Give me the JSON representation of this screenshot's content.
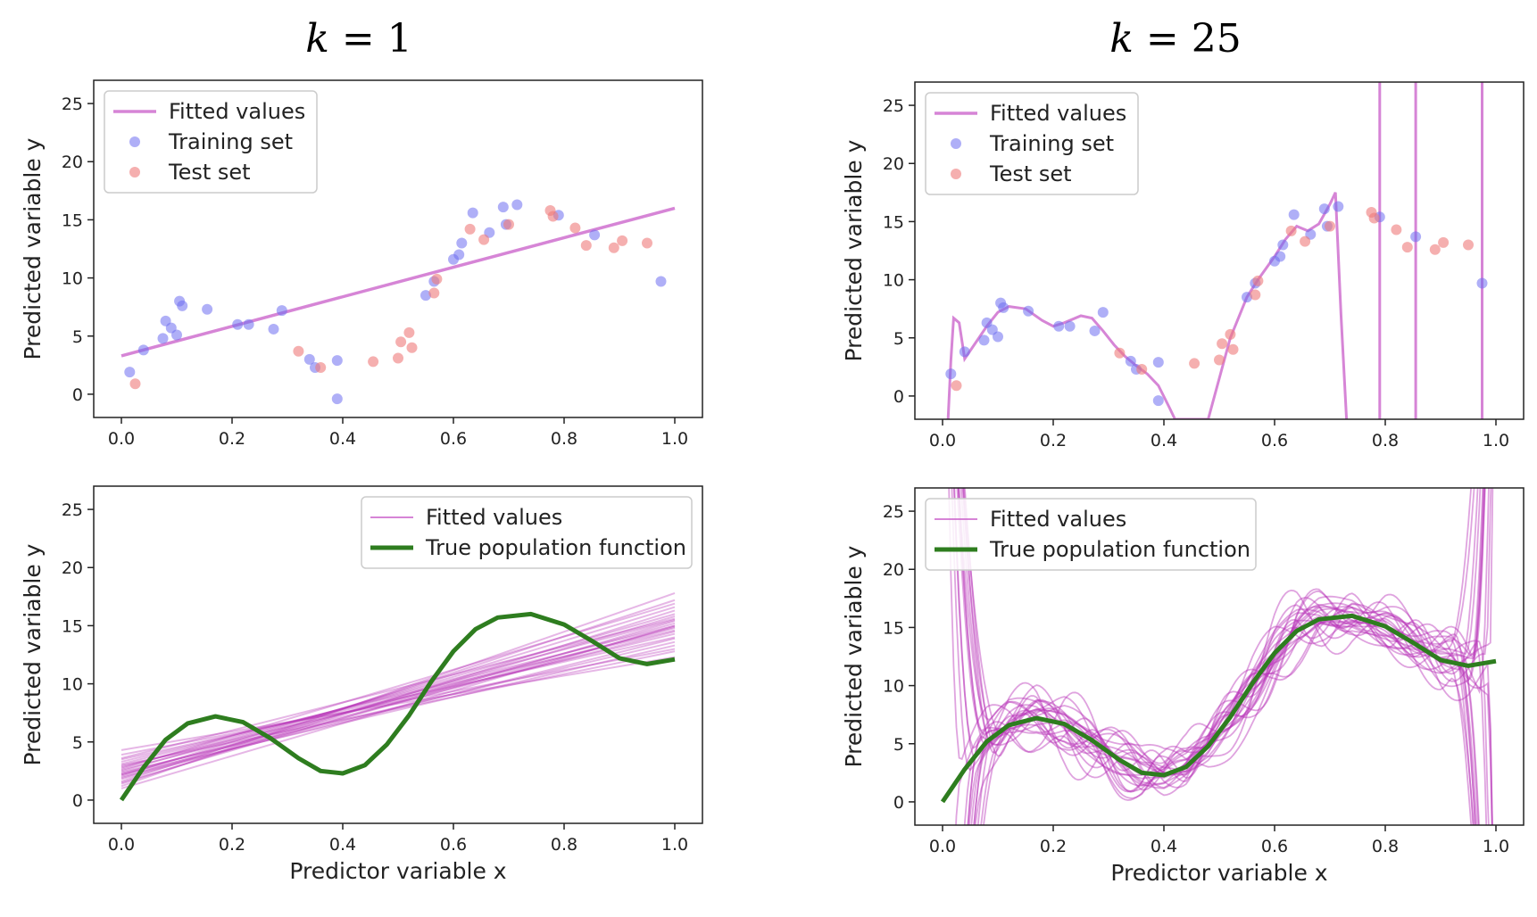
{
  "columns": [
    {
      "k_symbol": "k",
      "k_value": "= 1"
    },
    {
      "k_symbol": "k",
      "k_value": "= 25"
    }
  ],
  "chart_data": [
    {
      "id": "top-left",
      "type": "scatter",
      "degree": 1,
      "xlim": [
        -0.05,
        1.05
      ],
      "ylim": [
        -2,
        27
      ],
      "xticks": [
        0.0,
        0.2,
        0.4,
        0.6,
        0.8,
        1.0
      ],
      "xtick_labels": [
        "0.0",
        "0.2",
        "0.4",
        "0.6",
        "0.8",
        "1.0"
      ],
      "yticks": [
        0,
        5,
        10,
        15,
        20,
        25
      ],
      "ytick_labels": [
        "0",
        "5",
        "10",
        "15",
        "20",
        "25"
      ],
      "xlabel": "",
      "ylabel": "Predicted variable y",
      "legend": {
        "position": "upper left",
        "entries": [
          "Fitted values",
          "Training set",
          "Test set"
        ]
      },
      "fitted_line": {
        "x": [
          0.0,
          1.0
        ],
        "y": [
          3.3,
          16.0
        ]
      },
      "training_set": {
        "x": [
          0.015,
          0.04,
          0.075,
          0.08,
          0.09,
          0.1,
          0.105,
          0.11,
          0.155,
          0.21,
          0.23,
          0.275,
          0.29,
          0.34,
          0.35,
          0.39,
          0.39,
          0.55,
          0.565,
          0.6,
          0.61,
          0.615,
          0.635,
          0.665,
          0.69,
          0.695,
          0.715,
          0.79,
          0.855,
          0.975
        ],
        "y": [
          1.9,
          3.8,
          4.8,
          6.3,
          5.7,
          5.1,
          8.0,
          7.6,
          7.3,
          6.0,
          6.0,
          5.6,
          7.2,
          3.0,
          2.3,
          2.9,
          -0.4,
          8.5,
          9.7,
          11.6,
          12.0,
          13.0,
          15.6,
          13.9,
          16.1,
          14.6,
          16.3,
          15.4,
          13.7,
          9.7
        ]
      },
      "test_set": {
        "x": [
          0.025,
          0.32,
          0.36,
          0.455,
          0.5,
          0.505,
          0.52,
          0.525,
          0.565,
          0.57,
          0.63,
          0.655,
          0.7,
          0.775,
          0.78,
          0.82,
          0.84,
          0.89,
          0.905,
          0.95
        ],
        "y": [
          0.9,
          3.7,
          2.3,
          2.8,
          3.1,
          4.5,
          5.3,
          4.0,
          8.7,
          9.9,
          14.2,
          13.3,
          14.6,
          15.8,
          15.3,
          14.3,
          12.8,
          12.6,
          13.2,
          13.0
        ]
      }
    },
    {
      "id": "top-right",
      "type": "scatter",
      "degree": 25,
      "xlim": [
        -0.05,
        1.05
      ],
      "ylim": [
        -2,
        27
      ],
      "xticks": [
        0.0,
        0.2,
        0.4,
        0.6,
        0.8,
        1.0
      ],
      "xtick_labels": [
        "0.0",
        "0.2",
        "0.4",
        "0.6",
        "0.8",
        "1.0"
      ],
      "yticks": [
        0,
        5,
        10,
        15,
        20,
        25
      ],
      "ytick_labels": [
        "0",
        "5",
        "10",
        "15",
        "20",
        "25"
      ],
      "xlabel": "",
      "ylabel": "Predicted variable y",
      "legend": {
        "position": "upper left",
        "entries": [
          "Fitted values",
          "Training set",
          "Test set"
        ]
      },
      "fitted_curve": {
        "x": [
          0.01,
          0.015,
          0.02,
          0.03,
          0.04,
          0.06,
          0.08,
          0.1,
          0.12,
          0.15,
          0.18,
          0.2,
          0.22,
          0.25,
          0.27,
          0.29,
          0.31,
          0.33,
          0.35,
          0.37,
          0.39,
          0.41,
          0.42,
          0.48,
          0.5,
          0.52,
          0.55,
          0.57,
          0.6,
          0.62,
          0.64,
          0.66,
          0.68,
          0.7,
          0.71,
          0.72,
          0.73
        ],
        "y": [
          -2,
          3,
          6.7,
          6.3,
          3.2,
          4.6,
          6.0,
          7.2,
          7.7,
          7.5,
          6.5,
          6.0,
          6.3,
          6.9,
          6.7,
          5.6,
          4.4,
          3.4,
          2.6,
          1.9,
          0.9,
          -1.0,
          -2,
          -2,
          1.5,
          5.0,
          8.5,
          10.0,
          12.0,
          13.5,
          14.6,
          14.2,
          14.8,
          16.5,
          17.5,
          7.0,
          -2
        ],
        "spikes_x": [
          0.79,
          0.855,
          0.975
        ]
      },
      "training_set": {
        "x": [
          0.015,
          0.04,
          0.075,
          0.08,
          0.09,
          0.1,
          0.105,
          0.11,
          0.155,
          0.21,
          0.23,
          0.275,
          0.29,
          0.34,
          0.35,
          0.39,
          0.39,
          0.55,
          0.565,
          0.6,
          0.61,
          0.615,
          0.635,
          0.665,
          0.69,
          0.695,
          0.715,
          0.79,
          0.855,
          0.975
        ],
        "y": [
          1.9,
          3.8,
          4.8,
          6.3,
          5.7,
          5.1,
          8.0,
          7.6,
          7.3,
          6.0,
          6.0,
          5.6,
          7.2,
          3.0,
          2.3,
          2.9,
          -0.4,
          8.5,
          9.7,
          11.6,
          12.0,
          13.0,
          15.6,
          13.9,
          16.1,
          14.6,
          16.3,
          15.4,
          13.7,
          9.7
        ]
      },
      "test_set": {
        "x": [
          0.025,
          0.32,
          0.36,
          0.455,
          0.5,
          0.505,
          0.52,
          0.525,
          0.565,
          0.57,
          0.63,
          0.655,
          0.7,
          0.775,
          0.78,
          0.82,
          0.84,
          0.89,
          0.905,
          0.95
        ],
        "y": [
          0.9,
          3.7,
          2.3,
          2.8,
          3.1,
          4.5,
          5.3,
          4.0,
          8.7,
          9.9,
          14.2,
          13.3,
          14.6,
          15.8,
          15.3,
          14.3,
          12.8,
          12.6,
          13.2,
          13.0
        ]
      }
    },
    {
      "id": "bottom-left",
      "type": "line",
      "degree": 1,
      "xlim": [
        -0.05,
        1.05
      ],
      "ylim": [
        -2,
        27
      ],
      "xticks": [
        0.0,
        0.2,
        0.4,
        0.6,
        0.8,
        1.0
      ],
      "xtick_labels": [
        "0.0",
        "0.2",
        "0.4",
        "0.6",
        "0.8",
        "1.0"
      ],
      "yticks": [
        0,
        5,
        10,
        15,
        20,
        25
      ],
      "ytick_labels": [
        "0",
        "5",
        "10",
        "15",
        "20",
        "25"
      ],
      "xlabel": "Predictor variable x",
      "ylabel": "Predicted variable y",
      "legend": {
        "position": "upper right",
        "entries": [
          "Fitted values",
          "True population function"
        ]
      },
      "fitted_lines": [
        {
          "y0": 4.3,
          "y1": 12.3
        },
        {
          "y0": 3.9,
          "y1": 13.0
        },
        {
          "y0": 3.5,
          "y1": 14.0
        },
        {
          "y0": 3.3,
          "y1": 14.6
        },
        {
          "y0": 3.1,
          "y1": 15.0
        },
        {
          "y0": 2.9,
          "y1": 14.3
        },
        {
          "y0": 2.8,
          "y1": 15.5
        },
        {
          "y0": 2.6,
          "y1": 14.8
        },
        {
          "y0": 2.5,
          "y1": 16.0
        },
        {
          "y0": 2.4,
          "y1": 13.6
        },
        {
          "y0": 2.3,
          "y1": 14.5
        },
        {
          "y0": 2.2,
          "y1": 15.2
        },
        {
          "y0": 2.1,
          "y1": 16.6
        },
        {
          "y0": 2.0,
          "y1": 13.9
        },
        {
          "y0": 1.9,
          "y1": 15.8
        },
        {
          "y0": 1.8,
          "y1": 14.9
        },
        {
          "y0": 1.6,
          "y1": 17.2
        },
        {
          "y0": 1.5,
          "y1": 15.4
        },
        {
          "y0": 1.4,
          "y1": 16.3
        },
        {
          "y0": 1.2,
          "y1": 17.8
        },
        {
          "y0": 1.0,
          "y1": 15.0
        },
        {
          "y0": 2.7,
          "y1": 16.9
        },
        {
          "y0": 3.0,
          "y1": 12.8
        },
        {
          "y0": 2.2,
          "y1": 13.3
        },
        {
          "y0": 3.6,
          "y1": 15.6
        }
      ],
      "true_function": {
        "x": [
          0.0,
          0.04,
          0.08,
          0.12,
          0.17,
          0.22,
          0.27,
          0.32,
          0.36,
          0.4,
          0.44,
          0.48,
          0.52,
          0.56,
          0.6,
          0.64,
          0.68,
          0.74,
          0.8,
          0.85,
          0.9,
          0.95,
          1.0
        ],
        "y": [
          0.0,
          2.8,
          5.2,
          6.6,
          7.2,
          6.7,
          5.3,
          3.6,
          2.5,
          2.3,
          3.0,
          4.8,
          7.3,
          10.2,
          12.8,
          14.7,
          15.7,
          16.0,
          15.1,
          13.7,
          12.2,
          11.7,
          12.1
        ]
      }
    },
    {
      "id": "bottom-right",
      "type": "line",
      "degree": 25,
      "xlim": [
        -0.05,
        1.05
      ],
      "ylim": [
        -2,
        27
      ],
      "xticks": [
        0.0,
        0.2,
        0.4,
        0.6,
        0.8,
        1.0
      ],
      "xtick_labels": [
        "0.0",
        "0.2",
        "0.4",
        "0.6",
        "0.8",
        "1.0"
      ],
      "yticks": [
        0,
        5,
        10,
        15,
        20,
        25
      ],
      "ytick_labels": [
        "0",
        "5",
        "10",
        "15",
        "20",
        "25"
      ],
      "xlabel": "Predictor variable x",
      "ylabel": "Predicted variable y",
      "legend": {
        "position": "upper left",
        "entries": [
          "Fitted values",
          "True population function"
        ]
      },
      "fitted_curve_count": 25,
      "true_function": {
        "x": [
          0.0,
          0.04,
          0.08,
          0.12,
          0.17,
          0.22,
          0.27,
          0.32,
          0.36,
          0.4,
          0.44,
          0.48,
          0.52,
          0.56,
          0.6,
          0.64,
          0.68,
          0.74,
          0.8,
          0.85,
          0.9,
          0.95,
          1.0
        ],
        "y": [
          0.0,
          2.8,
          5.2,
          6.6,
          7.2,
          6.7,
          5.3,
          3.6,
          2.5,
          2.3,
          3.0,
          4.8,
          7.3,
          10.2,
          12.8,
          14.7,
          15.7,
          16.0,
          15.1,
          13.7,
          12.2,
          11.7,
          12.1
        ]
      }
    }
  ],
  "colors": {
    "fitted": "#cc66cc",
    "fitted_dense": "#b833b8",
    "training": "#6e6ef0",
    "test": "#ef7a7a",
    "true_function": "#2e7d1f",
    "axis": "#222222"
  }
}
